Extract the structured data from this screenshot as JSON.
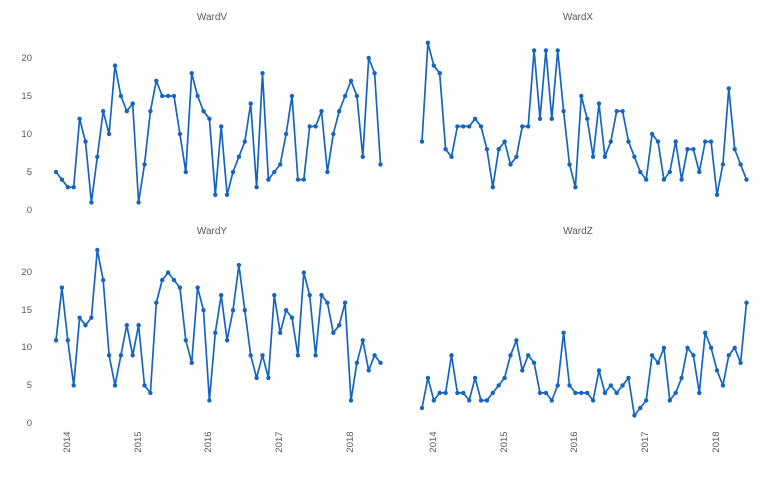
{
  "figure": {
    "background_color": "#ffffff",
    "text_color": "#595959",
    "series_color": "#1565c0",
    "rows": 2,
    "cols": 2,
    "shared_x_axis": true,
    "shared_y_axis": true
  },
  "chart_data": [
    {
      "type": "line",
      "title": "WardV",
      "position": {
        "row": 0,
        "col": 0
      },
      "marker": "point",
      "grid": false,
      "line_color": "#1565c0",
      "x_start": "2013-11",
      "x_frequency": "monthly",
      "x_tick_labels": [
        "2014",
        "2015",
        "2016",
        "2017",
        "2018"
      ],
      "x_tick_month_offsets": [
        2,
        14,
        26,
        38,
        50
      ],
      "y_ticks": [
        0,
        5,
        10,
        15,
        20
      ],
      "ylim": [
        0,
        23.5
      ],
      "values": [
        5,
        4,
        3,
        3,
        12,
        9,
        1,
        7,
        13,
        10,
        19,
        15,
        13,
        14,
        1,
        6,
        13,
        17,
        15,
        15,
        15,
        10,
        5,
        18,
        15,
        13,
        12,
        2,
        11,
        2,
        5,
        7,
        9,
        14,
        3,
        18,
        4,
        5,
        6,
        10,
        15,
        4,
        4,
        11,
        11,
        13,
        5,
        10,
        13,
        15,
        17,
        15,
        7,
        20,
        18,
        6
      ]
    },
    {
      "type": "line",
      "title": "WardX",
      "position": {
        "row": 0,
        "col": 1
      },
      "marker": "point",
      "grid": false,
      "line_color": "#1565c0",
      "x_start": "2013-11",
      "x_frequency": "monthly",
      "x_tick_labels": [
        "2014",
        "2015",
        "2016",
        "2017",
        "2018"
      ],
      "x_tick_month_offsets": [
        2,
        14,
        26,
        38,
        50
      ],
      "y_ticks": [
        0,
        5,
        10,
        15,
        20
      ],
      "ylim": [
        0,
        23.5
      ],
      "values": [
        9,
        22,
        19,
        18,
        8,
        7,
        11,
        11,
        11,
        12,
        11,
        8,
        3,
        8,
        9,
        6,
        7,
        11,
        11,
        21,
        12,
        21,
        12,
        21,
        13,
        6,
        3,
        15,
        12,
        7,
        14,
        7,
        9,
        13,
        13,
        9,
        7,
        5,
        4,
        10,
        9,
        4,
        5,
        9,
        4,
        8,
        8,
        5,
        9,
        9,
        2,
        6,
        16,
        8,
        6,
        4
      ]
    },
    {
      "type": "line",
      "title": "WardY",
      "position": {
        "row": 1,
        "col": 0
      },
      "marker": "point",
      "grid": false,
      "line_color": "#1565c0",
      "x_start": "2013-11",
      "x_frequency": "monthly",
      "x_tick_labels": [
        "2014",
        "2015",
        "2016",
        "2017",
        "2018"
      ],
      "x_tick_month_offsets": [
        2,
        14,
        26,
        38,
        50
      ],
      "y_ticks": [
        0,
        5,
        10,
        15,
        20
      ],
      "ylim": [
        0,
        23.5
      ],
      "values": [
        11,
        18,
        11,
        5,
        14,
        13,
        14,
        23,
        19,
        9,
        5,
        9,
        13,
        9,
        13,
        5,
        4,
        16,
        19,
        20,
        19,
        18,
        11,
        8,
        18,
        15,
        3,
        12,
        17,
        11,
        15,
        21,
        15,
        9,
        6,
        9,
        6,
        17,
        12,
        15,
        14,
        9,
        20,
        17,
        9,
        17,
        16,
        12,
        13,
        16,
        3,
        8,
        11,
        7,
        9,
        8
      ]
    },
    {
      "type": "line",
      "title": "WardZ",
      "position": {
        "row": 1,
        "col": 1
      },
      "marker": "point",
      "grid": false,
      "line_color": "#1565c0",
      "x_start": "2013-11",
      "x_frequency": "monthly",
      "x_tick_labels": [
        "2014",
        "2015",
        "2016",
        "2017",
        "2018"
      ],
      "x_tick_month_offsets": [
        2,
        14,
        26,
        38,
        50
      ],
      "y_ticks": [
        0,
        5,
        10,
        15,
        20
      ],
      "ylim": [
        0,
        23.5
      ],
      "values": [
        2,
        6,
        3,
        4,
        4,
        9,
        4,
        4,
        3,
        6,
        3,
        3,
        4,
        5,
        6,
        9,
        11,
        7,
        9,
        8,
        4,
        4,
        3,
        5,
        12,
        5,
        4,
        4,
        4,
        3,
        7,
        4,
        5,
        4,
        5,
        6,
        1,
        2,
        3,
        9,
        8,
        10,
        3,
        4,
        6,
        10,
        9,
        4,
        12,
        10,
        7,
        5,
        9,
        10,
        8,
        16
      ]
    }
  ]
}
